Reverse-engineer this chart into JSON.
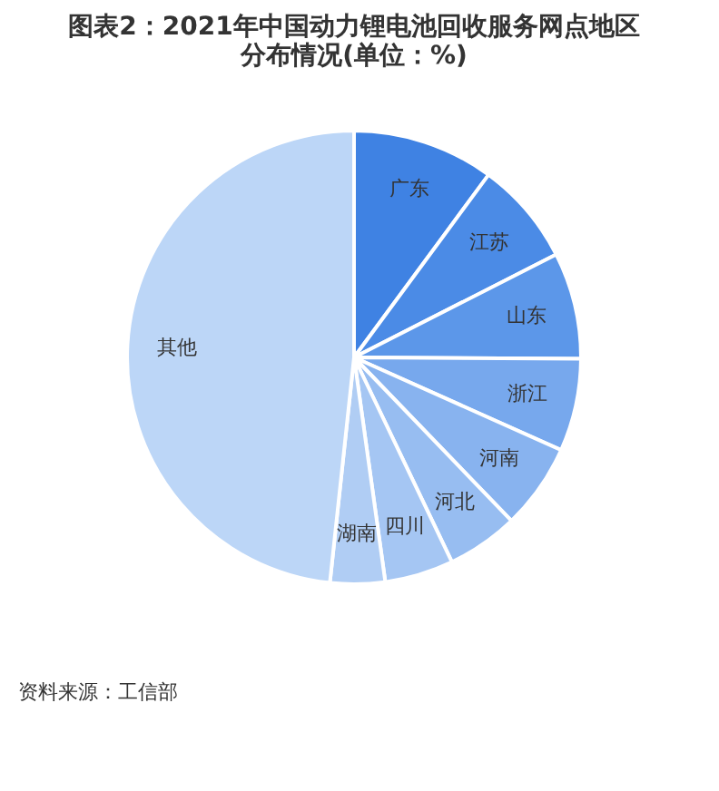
{
  "chart_data": {
    "type": "pie",
    "title": [
      "图表2：2021年中国动力锂电池回收服务网点地区",
      "分布情况(单位：%)"
    ],
    "categories": [
      "广东",
      "江苏",
      "山东",
      "浙江",
      "河南",
      "河北",
      "四川",
      "湖南",
      "其他"
    ],
    "values": [
      10.1,
      7.4,
      7.6,
      6.6,
      6.1,
      5.1,
      4.9,
      3.9,
      48.3
    ],
    "colors": [
      "#3f82e3",
      "#4b8be6",
      "#5c97e9",
      "#77a8ed",
      "#88b3ef",
      "#97bdf1",
      "#a5c6f3",
      "#b0cdf4",
      "#bcd6f7"
    ],
    "legend": false,
    "annotations": [
      "资料来源：工信部"
    ]
  }
}
